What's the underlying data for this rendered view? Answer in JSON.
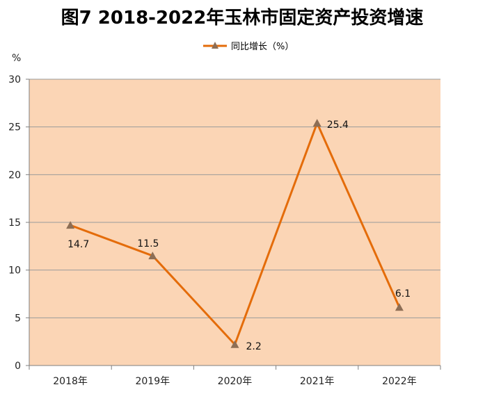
{
  "chart_data": {
    "type": "line",
    "title": "图7   2018-2022年玉林市固定资产投资增速",
    "unit_label": "%",
    "categories": [
      "2018年",
      "2019年",
      "2020年",
      "2021年",
      "2022年"
    ],
    "series": [
      {
        "name": "同比增长（%）",
        "values": [
          14.7,
          11.5,
          2.2,
          25.4,
          6.1
        ],
        "labels": [
          "14.7",
          "11.5",
          "2.2",
          "25.4",
          "6.1"
        ]
      }
    ],
    "ylim": [
      0,
      30
    ],
    "yticks": [
      "0",
      "5",
      "10",
      "15",
      "20",
      "25",
      "30"
    ],
    "grid": true,
    "legend_position": "top-center",
    "colors": {
      "plot_bg": "#FBD5B5",
      "line": "#E46C0A",
      "marker": "#8D6E55",
      "grid": "#9A9A9A"
    }
  }
}
